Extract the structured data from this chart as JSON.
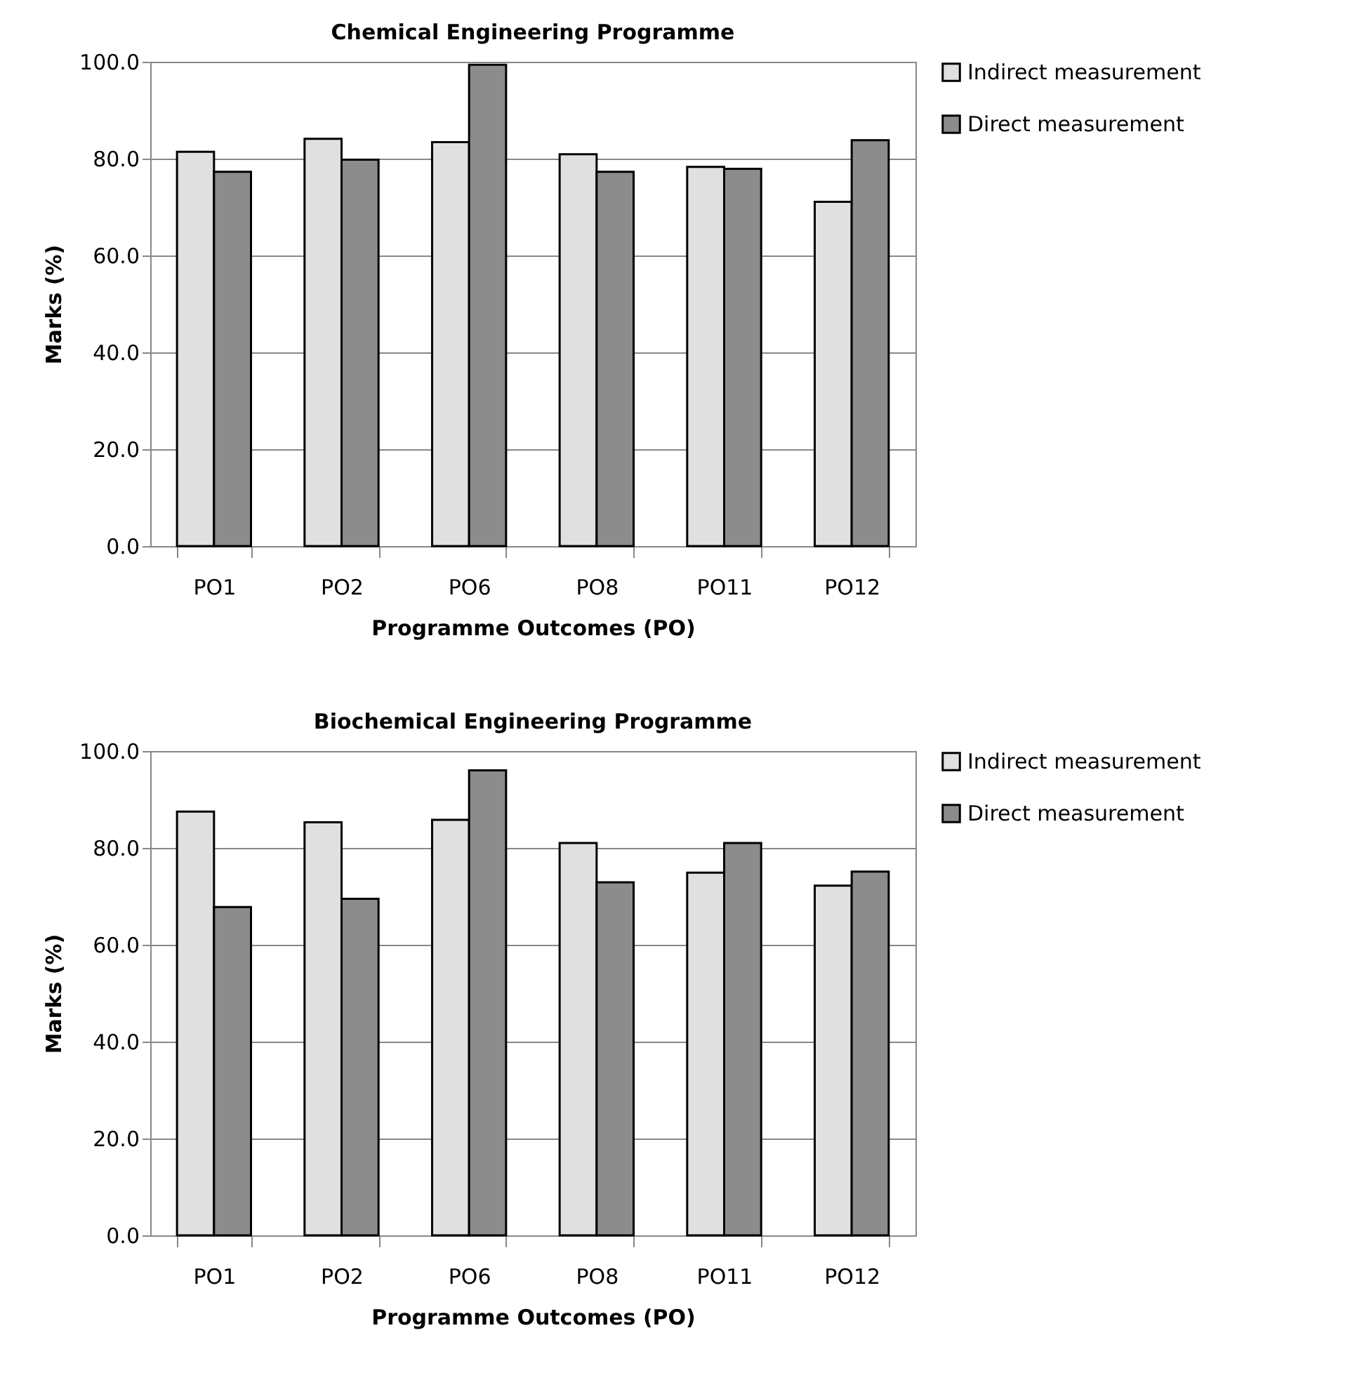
{
  "chart_data": [
    {
      "type": "bar",
      "title": "Chemical Engineering Programme",
      "xlabel": "Programme Outcomes (PO)",
      "ylabel": "Marks (%)",
      "categories": [
        "PO1",
        "PO2",
        "PO6",
        "PO8",
        "PO11",
        "PO12"
      ],
      "series": [
        {
          "name": "Indirect measurement",
          "color": "#e0e0e0",
          "values": [
            81.4,
            84.1,
            83.4,
            80.9,
            78.3,
            71.1
          ]
        },
        {
          "name": "Direct measurement",
          "color": "#8c8c8c",
          "values": [
            77.3,
            79.8,
            99.4,
            77.3,
            77.9,
            83.8
          ]
        }
      ],
      "ylim": [
        0,
        100
      ],
      "yticks": [
        {
          "value": 0,
          "label": "0.0"
        },
        {
          "value": 20,
          "label": "20.0"
        },
        {
          "value": 40,
          "label": "40.0"
        },
        {
          "value": 60,
          "label": "60.0"
        },
        {
          "value": 80,
          "label": "80.0"
        },
        {
          "value": 100,
          "label": "100.0"
        }
      ],
      "grid": "y",
      "legend": "right"
    },
    {
      "type": "bar",
      "title": "Biochemical Engineering Programme",
      "xlabel": "Programme Outcomes (PO)",
      "ylabel": "Marks (%)",
      "categories": [
        "PO1",
        "PO2",
        "PO6",
        "PO8",
        "PO11",
        "PO12"
      ],
      "series": [
        {
          "name": "Indirect measurement",
          "color": "#e0e0e0",
          "values": [
            87.5,
            85.3,
            85.8,
            81.0,
            74.9,
            72.2
          ]
        },
        {
          "name": "Direct measurement",
          "color": "#8c8c8c",
          "values": [
            67.8,
            69.5,
            96.0,
            72.9,
            81.0,
            75.1
          ]
        }
      ],
      "ylim": [
        0,
        100
      ],
      "yticks": [
        {
          "value": 0,
          "label": "0.0"
        },
        {
          "value": 20,
          "label": "20.0"
        },
        {
          "value": 40,
          "label": "40.0"
        },
        {
          "value": 60,
          "label": "60.0"
        },
        {
          "value": 80,
          "label": "80.0"
        },
        {
          "value": 100,
          "label": "100.0"
        }
      ],
      "grid": "y",
      "legend": "right"
    }
  ]
}
